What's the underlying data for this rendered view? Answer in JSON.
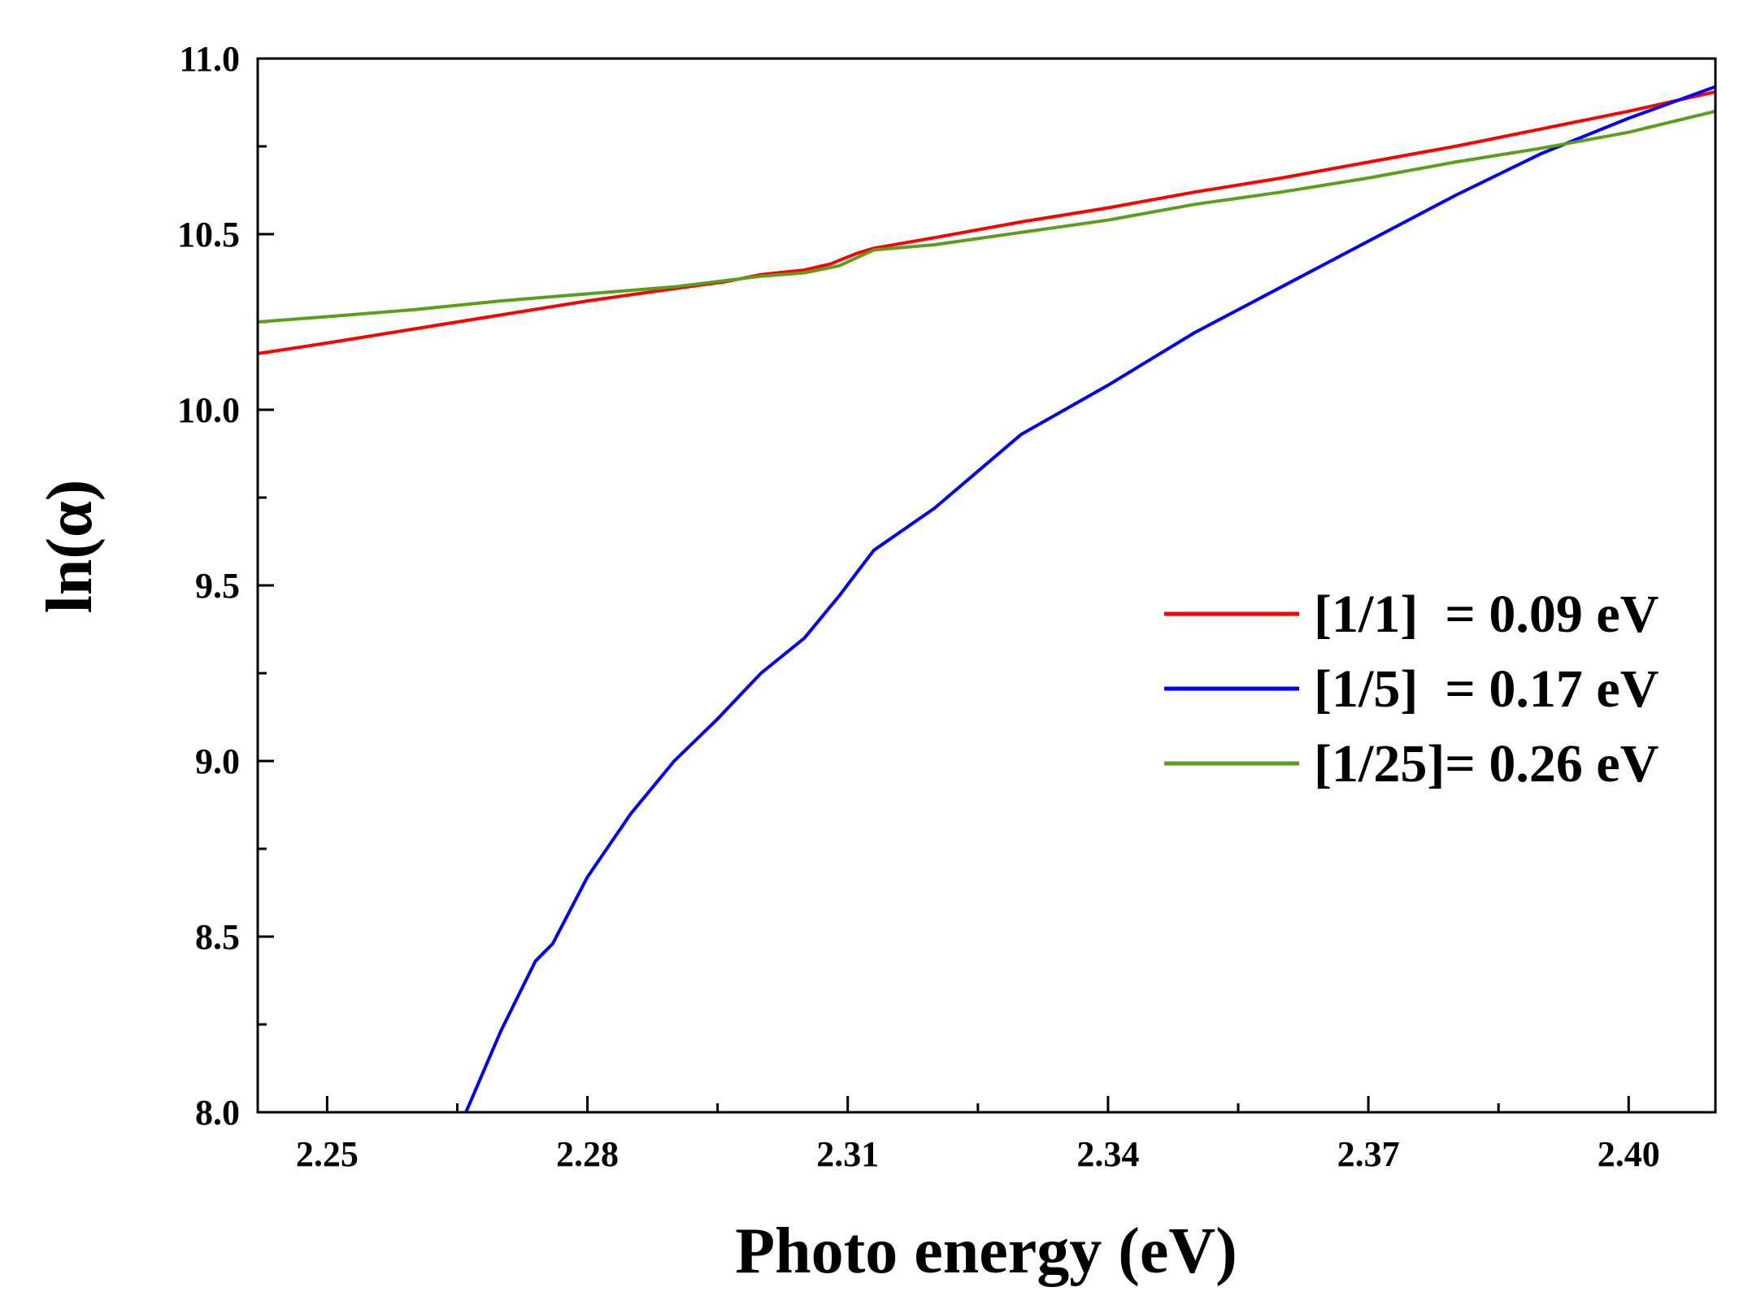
{
  "chart_data": {
    "type": "line",
    "title": "",
    "xlabel": "Photo energy (eV)",
    "ylabel_prefix": "ln(",
    "ylabel_symbol": "α",
    "ylabel_suffix": ")",
    "xlim": [
      2.242,
      2.41
    ],
    "ylim": [
      8.0,
      11.0
    ],
    "xticks": [
      2.25,
      2.28,
      2.31,
      2.34,
      2.37,
      2.4
    ],
    "xtick_labels": [
      "2.25",
      "2.28",
      "2.31",
      "2.34",
      "2.37",
      "2.40"
    ],
    "x_minor_ticks": [
      2.265,
      2.295,
      2.325,
      2.355,
      2.385
    ],
    "yticks": [
      8.0,
      8.5,
      9.0,
      9.5,
      10.0,
      10.5,
      11.0
    ],
    "ytick_labels": [
      "8.0",
      "8.5",
      "9.0",
      "9.5",
      "10.0",
      "10.5",
      "11.0"
    ],
    "y_minor_ticks": [
      8.25,
      8.75,
      9.25,
      9.75,
      10.25,
      10.75
    ],
    "grid": false,
    "legend_position": "right-middle",
    "series": [
      {
        "name": "[1/1]  = 0.09 eV",
        "color": "#ff0000",
        "x": [
          2.242,
          2.25,
          2.26,
          2.27,
          2.28,
          2.29,
          2.296,
          2.3,
          2.305,
          2.308,
          2.311,
          2.313,
          2.32,
          2.33,
          2.34,
          2.35,
          2.36,
          2.37,
          2.38,
          2.39,
          2.4,
          2.41
        ],
        "y": [
          10.16,
          10.19,
          10.23,
          10.27,
          10.31,
          10.345,
          10.365,
          10.385,
          10.398,
          10.415,
          10.445,
          10.46,
          10.49,
          10.535,
          10.575,
          10.62,
          10.66,
          10.705,
          10.75,
          10.8,
          10.85,
          10.905
        ]
      },
      {
        "name": "[1/5]  = 0.17 eV",
        "color": "#0000ff",
        "x": [
          2.266,
          2.27,
          2.274,
          2.276,
          2.28,
          2.285,
          2.29,
          2.295,
          2.3,
          2.305,
          2.309,
          2.313,
          2.32,
          2.33,
          2.34,
          2.35,
          2.36,
          2.37,
          2.38,
          2.39,
          2.4,
          2.41
        ],
        "y": [
          8.0,
          8.23,
          8.43,
          8.48,
          8.67,
          8.85,
          9.0,
          9.12,
          9.25,
          9.35,
          9.47,
          9.6,
          9.72,
          9.93,
          10.07,
          10.22,
          10.35,
          10.48,
          10.61,
          10.73,
          10.83,
          10.92
        ]
      },
      {
        "name": "[1/25]= 0.26 eV",
        "color": "#5a9e1a",
        "x": [
          2.242,
          2.25,
          2.26,
          2.27,
          2.28,
          2.29,
          2.3,
          2.305,
          2.309,
          2.313,
          2.32,
          2.33,
          2.34,
          2.35,
          2.36,
          2.37,
          2.38,
          2.39,
          2.4,
          2.41
        ],
        "y": [
          10.25,
          10.265,
          10.285,
          10.31,
          10.33,
          10.35,
          10.38,
          10.39,
          10.41,
          10.455,
          10.47,
          10.505,
          10.54,
          10.585,
          10.62,
          10.66,
          10.705,
          10.745,
          10.79,
          10.85
        ]
      }
    ]
  }
}
